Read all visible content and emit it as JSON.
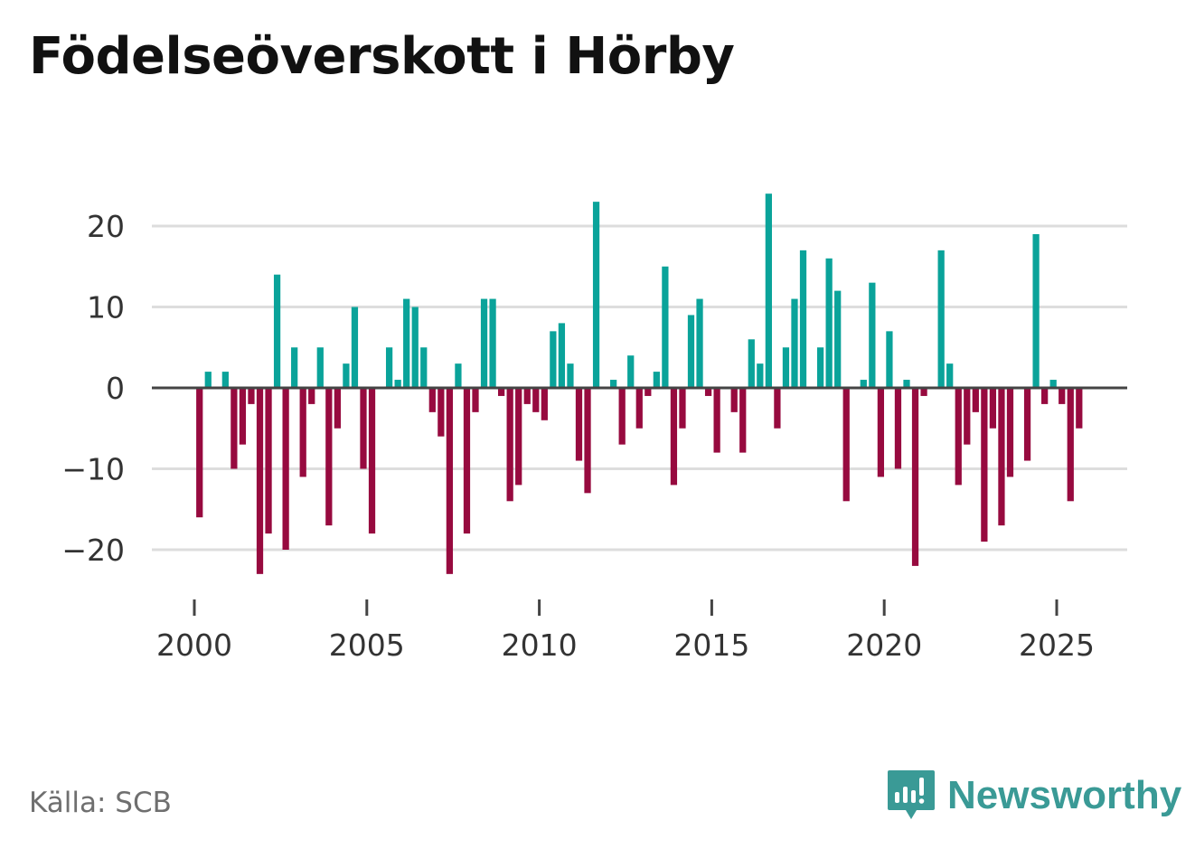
{
  "title": "Födelseöverskott i Hörby",
  "source": "Källa: SCB",
  "brand": {
    "name": "Newsworthy",
    "icon": "newsworthy-logo-icon"
  },
  "colors": {
    "positive": "#0aa39a",
    "negative": "#970a3f",
    "grid": "#dddddd",
    "zero": "#444444"
  },
  "chart_data": {
    "type": "bar",
    "title": "Födelseöverskott i Hörby",
    "xlabel": "",
    "ylabel": "",
    "ylim": [
      -25,
      25
    ],
    "xlim": [
      1999.9,
      2026.9
    ],
    "yticks": [
      20,
      10,
      0,
      -10,
      -20
    ],
    "ytick_labels": [
      "20",
      "10",
      "0",
      "−10",
      "−20"
    ],
    "xticks": [
      2000,
      2005,
      2010,
      2015,
      2020,
      2025
    ],
    "xtick_labels": [
      "2000",
      "2005",
      "2010",
      "2015",
      "2020",
      "2025"
    ],
    "bar_width": 0.19,
    "x": [
      2000.15,
      2000.4,
      2000.65,
      2000.9,
      2001.15,
      2001.4,
      2001.65,
      2001.9,
      2002.15,
      2002.4,
      2002.65,
      2002.9,
      2003.15,
      2003.4,
      2003.65,
      2003.9,
      2004.15,
      2004.4,
      2004.65,
      2004.9,
      2005.15,
      2005.4,
      2005.65,
      2005.9,
      2006.15,
      2006.4,
      2006.65,
      2006.9,
      2007.15,
      2007.4,
      2007.65,
      2007.9,
      2008.15,
      2008.4,
      2008.65,
      2008.9,
      2009.15,
      2009.4,
      2009.65,
      2009.9,
      2010.15,
      2010.4,
      2010.65,
      2010.9,
      2011.15,
      2011.4,
      2011.65,
      2011.9,
      2012.15,
      2012.4,
      2012.65,
      2012.9,
      2013.15,
      2013.4,
      2013.65,
      2013.9,
      2014.15,
      2014.4,
      2014.65,
      2014.9,
      2015.15,
      2015.4,
      2015.65,
      2015.9,
      2016.15,
      2016.4,
      2016.65,
      2016.9,
      2017.15,
      2017.4,
      2017.65,
      2017.9,
      2018.15,
      2018.4,
      2018.65,
      2018.9,
      2019.15,
      2019.4,
      2019.65,
      2019.9,
      2020.15,
      2020.4,
      2020.65,
      2020.9,
      2021.15,
      2021.4,
      2021.65,
      2021.9,
      2022.15,
      2022.4,
      2022.65,
      2022.9,
      2023.15,
      2023.4,
      2023.65,
      2023.9,
      2024.15,
      2024.4,
      2024.65,
      2024.9,
      2025.15,
      2025.4,
      2025.65
    ],
    "values": [
      -16,
      2,
      0,
      2,
      -10,
      -7,
      -2,
      -23,
      -18,
      14,
      -20,
      5,
      -11,
      -2,
      5,
      -17,
      -5,
      3,
      10,
      -10,
      -18,
      0,
      5,
      1,
      11,
      10,
      5,
      -3,
      -6,
      -23,
      3,
      -18,
      -3,
      11,
      11,
      -1,
      -14,
      -12,
      -2,
      -3,
      -4,
      7,
      8,
      3,
      -9,
      -13,
      23,
      0,
      1,
      -7,
      4,
      -5,
      -1,
      2,
      15,
      -12,
      -5,
      9,
      11,
      -1,
      -8,
      0,
      -3,
      -8,
      6,
      3,
      24,
      -5,
      5,
      11,
      17,
      0,
      5,
      16,
      12,
      -14,
      0,
      1,
      13,
      -11,
      7,
      -10,
      1,
      -22,
      -1,
      0,
      17,
      3,
      -12,
      -7,
      -3,
      -19,
      -5,
      -17,
      -11,
      0,
      -9,
      19,
      -2,
      1,
      -2,
      -14,
      -5
    ]
  }
}
